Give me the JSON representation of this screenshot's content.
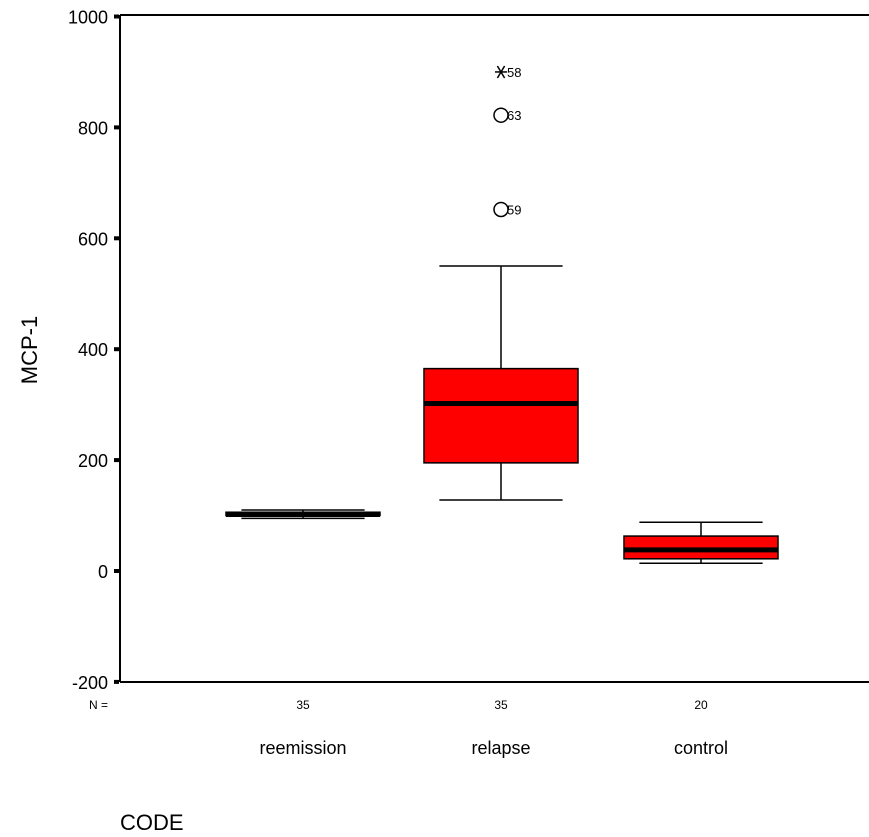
{
  "chart_data": {
    "type": "boxplot",
    "ylabel": "MCP-1",
    "xlabel": "CODE",
    "ylim": [
      -200,
      1000
    ],
    "yticks": [
      -200,
      0,
      200,
      400,
      600,
      800,
      1000
    ],
    "n_label": "N =",
    "box_color": "#ff0000",
    "groups": [
      {
        "category": "reemission",
        "n": "35",
        "whisker_low": 95,
        "q1": 100,
        "median": 102,
        "q3": 106,
        "whisker_high": 110,
        "outliers": []
      },
      {
        "category": "relapse",
        "n": "35",
        "whisker_low": 128,
        "q1": 195,
        "median": 302,
        "q3": 365,
        "whisker_high": 550,
        "outliers": [
          {
            "value": 900,
            "label": "58",
            "marker": "star"
          },
          {
            "value": 822,
            "label": "63",
            "marker": "circle"
          },
          {
            "value": 652,
            "label": "59",
            "marker": "circle"
          }
        ]
      },
      {
        "category": "control",
        "n": "20",
        "whisker_low": 14,
        "q1": 22,
        "median": 38,
        "q3": 63,
        "whisker_high": 88,
        "outliers": []
      }
    ]
  }
}
